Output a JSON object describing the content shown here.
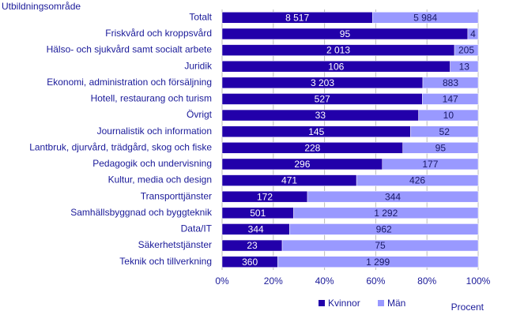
{
  "chart_data": {
    "type": "bar",
    "orientation": "horizontal",
    "stacking": "percent",
    "y_axis_title": "Utbildningsområde",
    "x_axis_title": "Procent",
    "categories": [
      "Totalt",
      "Friskvård och kroppsvård",
      "Hälso- och sjukvård samt socialt arbete",
      "Juridik",
      "Ekonomi, administration och försäljning",
      "Hotell, restaurang och turism",
      "Övrigt",
      "Journalistik och information",
      "Lantbruk, djurvård, trädgård, skog och fiske",
      "Pedagogik och undervisning",
      "Kultur, media och design",
      "Transporttjänster",
      "Samhällsbyggnad och byggteknik",
      "Data/IT",
      "Säkerhetstjänster",
      "Teknik och tillverkning"
    ],
    "series": [
      {
        "name": "Kvinnor",
        "color": "#2200aa",
        "label_color": "#ffffff",
        "values": [
          8517,
          95,
          2013,
          106,
          3203,
          527,
          33,
          145,
          228,
          296,
          471,
          172,
          501,
          344,
          23,
          360
        ],
        "value_labels": [
          "8 517",
          "95",
          "2 013",
          "106",
          "3 203",
          "527",
          "33",
          "145",
          "228",
          "296",
          "471",
          "172",
          "501",
          "344",
          "23",
          "360"
        ]
      },
      {
        "name": "Män",
        "color": "#9999ff",
        "label_color": "#1a1a66",
        "values": [
          5984,
          4,
          205,
          13,
          883,
          147,
          10,
          52,
          95,
          177,
          426,
          344,
          1292,
          962,
          75,
          1299
        ],
        "value_labels": [
          "5 984",
          "4",
          "205",
          "13",
          "883",
          "147",
          "10",
          "52",
          "95",
          "177",
          "426",
          "344",
          "1 292",
          "962",
          "75",
          "1 299"
        ]
      }
    ],
    "xlim": [
      0,
      100
    ],
    "xticks": [
      {
        "value": 0,
        "label": "0%"
      },
      {
        "value": 20,
        "label": "20%"
      },
      {
        "value": 40,
        "label": "40%"
      },
      {
        "value": 60,
        "label": "60%"
      },
      {
        "value": 80,
        "label": "80%"
      },
      {
        "value": 100,
        "label": "100%"
      }
    ],
    "grid": true,
    "legend": "bottom"
  }
}
